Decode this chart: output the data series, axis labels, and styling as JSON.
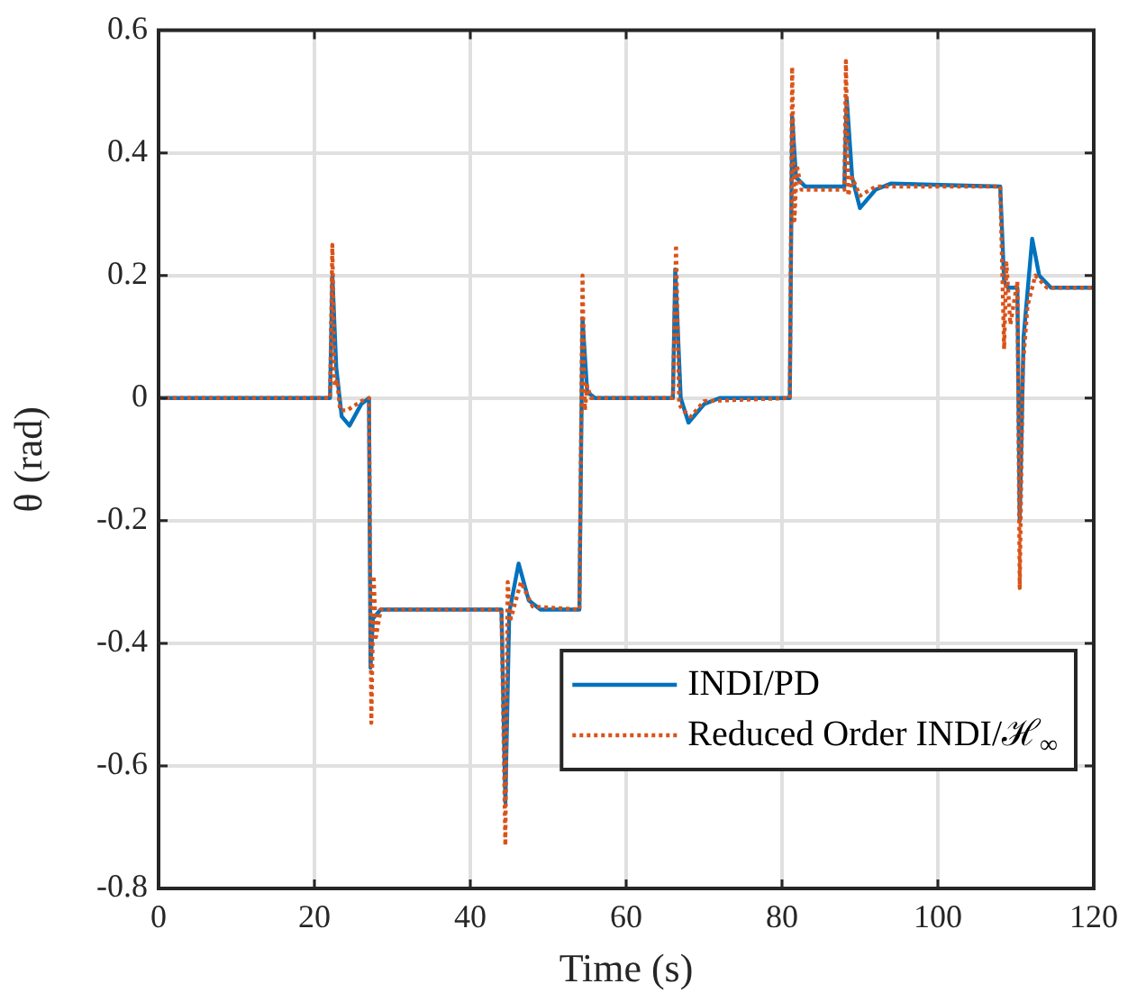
{
  "chart_data": {
    "type": "line",
    "xlabel": "Time (s)",
    "ylabel": "θ (rad)",
    "xlim": [
      0,
      120
    ],
    "xticks": [
      0,
      20,
      40,
      60,
      80,
      100,
      120
    ],
    "ylim": [
      -0.8,
      0.6
    ],
    "yticks": [
      -0.8,
      -0.6,
      -0.4,
      -0.2,
      0,
      0.2,
      0.4,
      0.6
    ],
    "grid": true,
    "legend": "bottom right",
    "marker": "none",
    "series": [
      {
        "name": "INDI/PD",
        "color": "#0072bd",
        "line_style": "solid",
        "x": [
          0,
          22,
          22.3,
          22.8,
          23.5,
          24.5,
          26,
          27,
          27.2,
          27.5,
          28.5,
          44,
          44.5,
          45,
          46.2,
          47.5,
          49,
          54,
          54.4,
          55,
          56,
          66,
          66.3,
          67,
          68,
          70,
          72,
          81,
          81.3,
          81.8,
          83,
          88,
          88.3,
          89,
          90,
          92,
          94,
          108,
          108.5,
          109,
          110.2,
          110.5,
          111,
          112.1,
          113,
          114.5,
          120
        ],
        "values": [
          0,
          0,
          0.2,
          0.05,
          -0.03,
          -0.045,
          -0.01,
          0,
          -0.44,
          -0.36,
          -0.345,
          -0.345,
          -0.66,
          -0.35,
          -0.27,
          -0.33,
          -0.345,
          -0.345,
          0.13,
          0.01,
          0,
          0,
          0.21,
          0,
          -0.04,
          -0.01,
          0,
          0,
          0.46,
          0.36,
          0.345,
          0.345,
          0.49,
          0.36,
          0.31,
          0.34,
          0.35,
          0.345,
          0.19,
          0.18,
          0.18,
          -0.2,
          0.1,
          0.26,
          0.2,
          0.18,
          0.18
        ]
      },
      {
        "name": "Reduced Order INDI/ℋ$_{∞}$",
        "color": "#d95319",
        "line_style": "dotted",
        "x": [
          0,
          22,
          22.3,
          22.6,
          22.9,
          23.3,
          24.2,
          26,
          27,
          27.3,
          27.6,
          27.9,
          28.5,
          44,
          44.5,
          44.8,
          45.2,
          46.5,
          48,
          54,
          54.4,
          54.7,
          55,
          55.5,
          57,
          66,
          66.4,
          66.8,
          67.3,
          68.3,
          70,
          81,
          81.3,
          81.6,
          81.9,
          82.5,
          84,
          88,
          88.2,
          88.5,
          89,
          90,
          92,
          108,
          108.5,
          108.8,
          109.3,
          110.2,
          110.5,
          110.9,
          111.5,
          112.5,
          114,
          120
        ],
        "values": [
          0,
          0,
          0.25,
          0.02,
          0.03,
          -0.02,
          -0.02,
          -0.005,
          0,
          -0.53,
          -0.29,
          -0.39,
          -0.345,
          -0.345,
          -0.73,
          -0.3,
          -0.36,
          -0.3,
          -0.34,
          -0.345,
          0.2,
          -0.02,
          0.02,
          0,
          0,
          0,
          0.25,
          -0.01,
          -0.02,
          -0.03,
          -0.005,
          0,
          0.54,
          0.29,
          0.38,
          0.34,
          0.34,
          0.34,
          0.55,
          0.33,
          0.36,
          0.33,
          0.345,
          0.345,
          0.08,
          0.22,
          0.12,
          0.19,
          -0.31,
          0.05,
          0.15,
          0.2,
          0.18,
          0.18
        ]
      }
    ]
  }
}
